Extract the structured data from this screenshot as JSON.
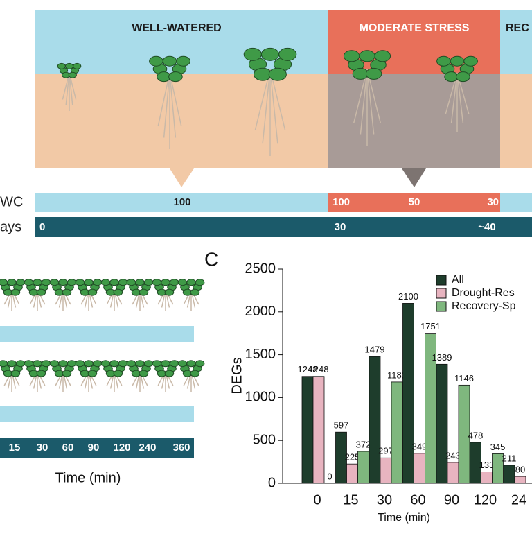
{
  "panel_top": {
    "phases": [
      "WELL-WATERED",
      "MODERATE STRESS",
      "REC"
    ],
    "swc_label": "WC",
    "swc_values": [
      "100",
      "100",
      "50",
      "30"
    ],
    "days_label": "ays",
    "days_values": [
      "0",
      "30",
      "~40"
    ]
  },
  "panel_b": {
    "time_labels": [
      "15",
      "30",
      "60",
      "90",
      "120",
      "240",
      "360"
    ],
    "axis_label": "Time (min)"
  },
  "panel_label": "C",
  "chart_data": {
    "type": "bar",
    "x_label": "Time (min)",
    "y_label": "DEGs",
    "categories": [
      "0",
      "15",
      "30",
      "60",
      "90",
      "120",
      "24"
    ],
    "series": [
      {
        "name": "All",
        "color": "#1e3d2c",
        "values": [
          1248,
          597,
          1479,
          2100,
          1389,
          478,
          211
        ]
      },
      {
        "name": "Drought-Res",
        "color": "#e8b4c0",
        "values": [
          1248,
          225,
          297,
          349,
          243,
          133,
          80
        ]
      },
      {
        "name": "Recovery-Sp",
        "color": "#7fb77e",
        "values": [
          0,
          372,
          1182,
          1751,
          1146,
          345,
          null
        ]
      }
    ],
    "ylim": [
      0,
      2500
    ],
    "yticks": [
      0,
      500,
      1000,
      1500,
      2000,
      2500
    ],
    "grid": false
  }
}
